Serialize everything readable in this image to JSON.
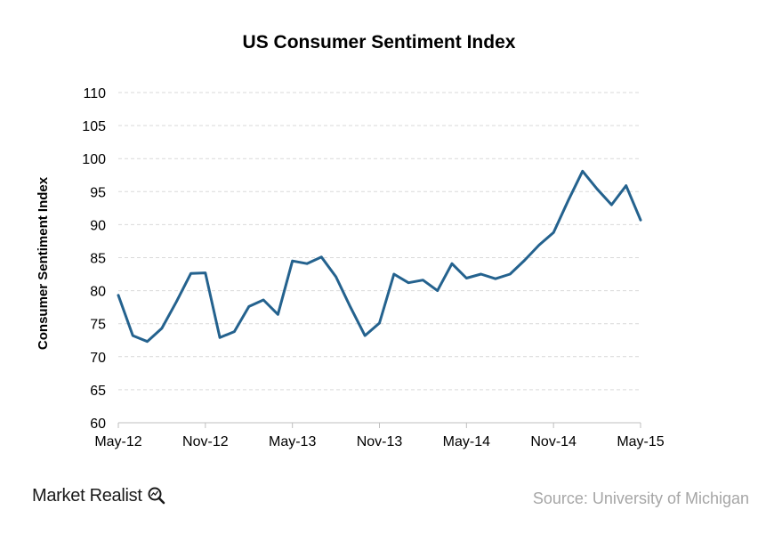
{
  "chart_data": {
    "type": "line",
    "title": "US Consumer Sentiment Index",
    "xlabel": "",
    "ylabel": "Consumer Sentiment Index",
    "ylim": [
      60,
      110
    ],
    "y_ticks": [
      60,
      65,
      70,
      75,
      80,
      85,
      90,
      95,
      100,
      105,
      110
    ],
    "x_tick_labels": [
      "May-12",
      "Nov-12",
      "May-13",
      "Nov-13",
      "May-14",
      "Nov-14",
      "May-15"
    ],
    "grid": true,
    "series": [
      {
        "name": "US Consumer Sentiment Index",
        "color": "#24628e",
        "x": [
          "May-12",
          "Jun-12",
          "Jul-12",
          "Aug-12",
          "Sep-12",
          "Oct-12",
          "Nov-12",
          "Dec-12",
          "Jan-13",
          "Feb-13",
          "Mar-13",
          "Apr-13",
          "May-13",
          "Jun-13",
          "Jul-13",
          "Aug-13",
          "Sep-13",
          "Oct-13",
          "Nov-13",
          "Dec-13",
          "Jan-14",
          "Feb-14",
          "Mar-14",
          "Apr-14",
          "May-14",
          "Jun-14",
          "Jul-14",
          "Aug-14",
          "Sep-14",
          "Oct-14",
          "Nov-14",
          "Dec-14",
          "Jan-15",
          "Feb-15",
          "Mar-15",
          "Apr-15",
          "May-15"
        ],
        "values": [
          79.3,
          73.2,
          72.3,
          74.3,
          78.3,
          82.6,
          82.7,
          72.9,
          73.8,
          77.6,
          78.6,
          76.4,
          84.5,
          84.1,
          85.1,
          82.1,
          77.5,
          73.2,
          75.1,
          82.5,
          81.2,
          81.6,
          80.0,
          84.1,
          81.9,
          82.5,
          81.8,
          82.5,
          84.6,
          86.9,
          88.8,
          93.6,
          98.1,
          95.4,
          93.0,
          95.9,
          90.7
        ]
      }
    ]
  },
  "branding": {
    "logo_text": "Market Realist"
  },
  "source_text": "Source: University of Michigan"
}
